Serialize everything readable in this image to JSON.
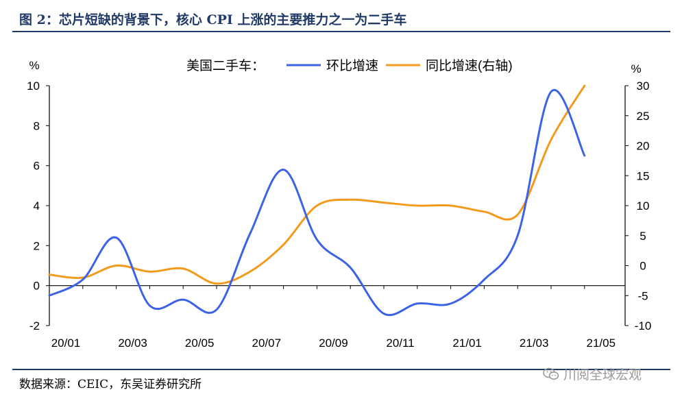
{
  "figure": {
    "title": "图 2：芯片短缺的背景下，核心 CPI 上涨的主要推力之一为二手车",
    "source": "数据来源：CEIC，东吴证券研究所",
    "watermark": "川阅全球宏观"
  },
  "chart_data": {
    "type": "line",
    "title": "",
    "legend": {
      "prefix": "美国二手车：",
      "position": "top-center"
    },
    "categories": [
      "20/01",
      "20/02",
      "20/03",
      "20/04",
      "20/05",
      "20/06",
      "20/07",
      "20/08",
      "20/09",
      "20/10",
      "20/11",
      "20/12",
      "21/01",
      "21/02",
      "21/03",
      "21/04",
      "21/05"
    ],
    "x_tick_labels": [
      "20/01",
      "20/03",
      "20/05",
      "20/07",
      "20/09",
      "20/11",
      "21/01",
      "21/03",
      "21/05"
    ],
    "series": [
      {
        "name": "环比增速",
        "axis": "left",
        "color": "#3c62e6",
        "values": [
          -0.5,
          0.3,
          2.4,
          -1.0,
          -0.7,
          -1.2,
          2.6,
          5.8,
          2.3,
          0.9,
          -1.4,
          -0.9,
          -0.9,
          0.3,
          2.5,
          9.7,
          6.5
        ]
      },
      {
        "name": "同比增速(右轴)",
        "axis": "right",
        "color": "#f49a1b",
        "values": [
          -1.5,
          -2.0,
          0.0,
          -1.0,
          -0.5,
          -3.0,
          -1.0,
          3.5,
          10.0,
          11.0,
          10.5,
          10.0,
          10.0,
          9.0,
          8.5,
          21.0,
          30.0
        ]
      }
    ],
    "y_left": {
      "label": "%",
      "min": -2,
      "max": 10,
      "ticks": [
        -2,
        0,
        2,
        4,
        6,
        8,
        10
      ]
    },
    "y_right": {
      "label": "%",
      "min": -10,
      "max": 30,
      "ticks": [
        -10,
        -5,
        0,
        5,
        10,
        15,
        20,
        25,
        30
      ]
    },
    "grid": false
  }
}
